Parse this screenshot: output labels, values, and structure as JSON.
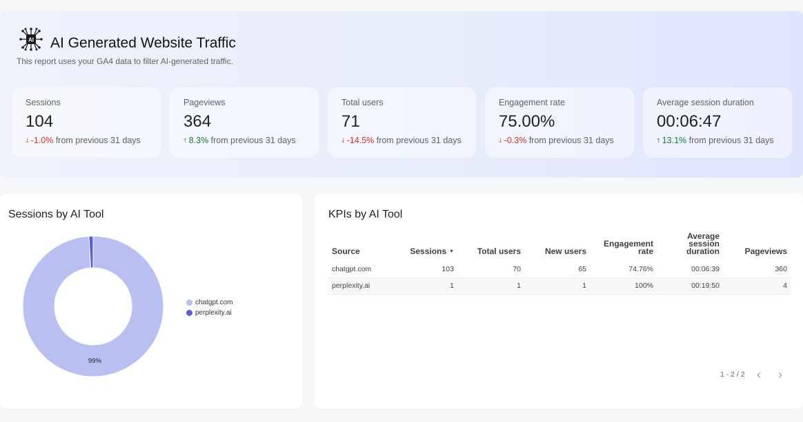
{
  "header": {
    "title": "AI Generated Website Traffic",
    "subtitle": "This report uses your GA4 data to filter AI-generated traffic.",
    "logo_icon": "ai-network-icon",
    "logo_text": "AI"
  },
  "kpis": [
    {
      "label": "Sessions",
      "value": "104",
      "delta": "-1.0%",
      "direction": "down",
      "suffix": "from previous 31 days"
    },
    {
      "label": "Pageviews",
      "value": "364",
      "delta": "8.3%",
      "direction": "up",
      "suffix": "from previous 31 days"
    },
    {
      "label": "Total users",
      "value": "71",
      "delta": "-14.5%",
      "direction": "down",
      "suffix": "from previous 31 days"
    },
    {
      "label": "Engagement rate",
      "value": "75.00%",
      "delta": "-0.3%",
      "direction": "down",
      "suffix": "from previous 31 days"
    },
    {
      "label": "Average session duration",
      "value": "00:06:47",
      "delta": "13.1%",
      "direction": "up",
      "suffix": "from previous 31 days"
    }
  ],
  "sessions_chart": {
    "title": "Sessions by AI Tool",
    "slice_label": "99%",
    "legend": [
      {
        "label": "chatgpt.com",
        "color": "#b8c0f1"
      },
      {
        "label": "perplexity.ai",
        "color": "#5c5fd0"
      }
    ]
  },
  "chart_data": {
    "type": "pie",
    "title": "Sessions by AI Tool",
    "categories": [
      "chatgpt.com",
      "perplexity.ai"
    ],
    "values": [
      103,
      1
    ],
    "colors": [
      "#b8c0f1",
      "#5c5fd0"
    ],
    "donut": true,
    "data_labels": [
      "99%",
      ""
    ],
    "legend_position": "right"
  },
  "kpi_table": {
    "title": "KPIs by AI Tool",
    "columns": [
      {
        "l1": "Source",
        "l2": "",
        "l3": ""
      },
      {
        "l1": "Sessions",
        "l2": "",
        "l3": "",
        "sorted": true
      },
      {
        "l1": "Total users",
        "l2": "",
        "l3": ""
      },
      {
        "l1": "New users",
        "l2": "",
        "l3": ""
      },
      {
        "l1": "Engagement",
        "l2": "rate",
        "l3": ""
      },
      {
        "l1": "Average",
        "l2": "session",
        "l3": "duration"
      },
      {
        "l1": "Pageviews",
        "l2": "",
        "l3": ""
      }
    ],
    "rows": [
      [
        "chatgpt.com",
        "103",
        "70",
        "65",
        "74.76%",
        "00:06:39",
        "360"
      ],
      [
        "perplexity.ai",
        "1",
        "1",
        "1",
        "100%",
        "00:19:50",
        "4"
      ]
    ],
    "pagination": "1 - 2 / 2"
  }
}
